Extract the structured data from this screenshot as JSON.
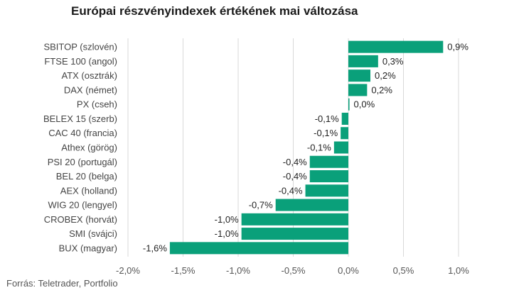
{
  "chart_data": {
    "type": "bar",
    "orientation": "horizontal",
    "title": "Európai részvényindexek értékének mai változása",
    "source": "Forrás: Teletrader, Portfolio",
    "bar_color": "#0aa07a",
    "grid": true,
    "xlim": [
      -2.0,
      1.0
    ],
    "x_ticks": [
      {
        "value": -2.0,
        "label": "-2,0%"
      },
      {
        "value": -1.5,
        "label": "-1,5%"
      },
      {
        "value": -1.0,
        "label": "-1,0%"
      },
      {
        "value": -0.5,
        "label": "-0,5%"
      },
      {
        "value": 0.0,
        "label": "0,0%"
      },
      {
        "value": 0.5,
        "label": "0,5%"
      },
      {
        "value": 1.0,
        "label": "1,0%"
      }
    ],
    "categories": [
      "SBITOP (szlovén)",
      "FTSE 100 (angol)",
      "ATX (osztrák)",
      "DAX (német)",
      "PX (cseh)",
      "BELEX 15 (szerb)",
      "CAC 40 (francia)",
      "Athex (görög)",
      "PSI 20 (portugál)",
      "BEL 20 (belga)",
      "AEX (holland)",
      "WIG 20 (lengyel)",
      "CROBEX (horvát)",
      "SMI (svájci)",
      "BUX (magyar)"
    ],
    "values": [
      0.86,
      0.27,
      0.2,
      0.17,
      0.01,
      -0.06,
      -0.07,
      -0.13,
      -0.35,
      -0.35,
      -0.39,
      -0.66,
      -0.97,
      -0.97,
      -1.62
    ],
    "value_labels": [
      "0,9%",
      "0,3%",
      "0,2%",
      "0,2%",
      "0,0%",
      "-0,1%",
      "-0,1%",
      "-0,1%",
      "-0,4%",
      "-0,4%",
      "-0,4%",
      "-0,7%",
      "-1,0%",
      "-1,0%",
      "-1,6%"
    ]
  }
}
